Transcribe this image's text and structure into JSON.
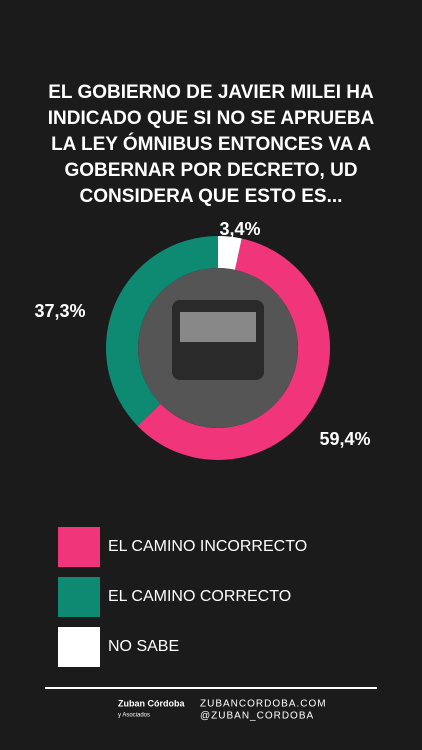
{
  "chart_data": {
    "type": "donut",
    "title": "EL GOBIERNO DE JAVIER MILEI HA INDICADO QUE SI NO SE APRUEBA LA LEY ÓMNIBUS ENTONCES VA A GOBERNAR POR DECRETO, UD CONSIDERA QUE ESTO ES...",
    "categories": [
      "NO SABE",
      "EL  CAMINO INCORRECTO",
      "EL CAMINO CORRECTO"
    ],
    "values": [
      3.4,
      59.4,
      37.3
    ],
    "value_labels": [
      "3,4%",
      "59,4%",
      "37,3%"
    ],
    "colors": [
      "#ffffff",
      "#f0357a",
      "#0e8a72"
    ],
    "legend_order": [
      1,
      2,
      0
    ]
  },
  "footer": {
    "logo": "Zuban Córdoba",
    "logo_sub": "y Asociados",
    "website": "ZUBANCORDOBA.COM",
    "social": "@ZUBAN_CORDOBA"
  }
}
